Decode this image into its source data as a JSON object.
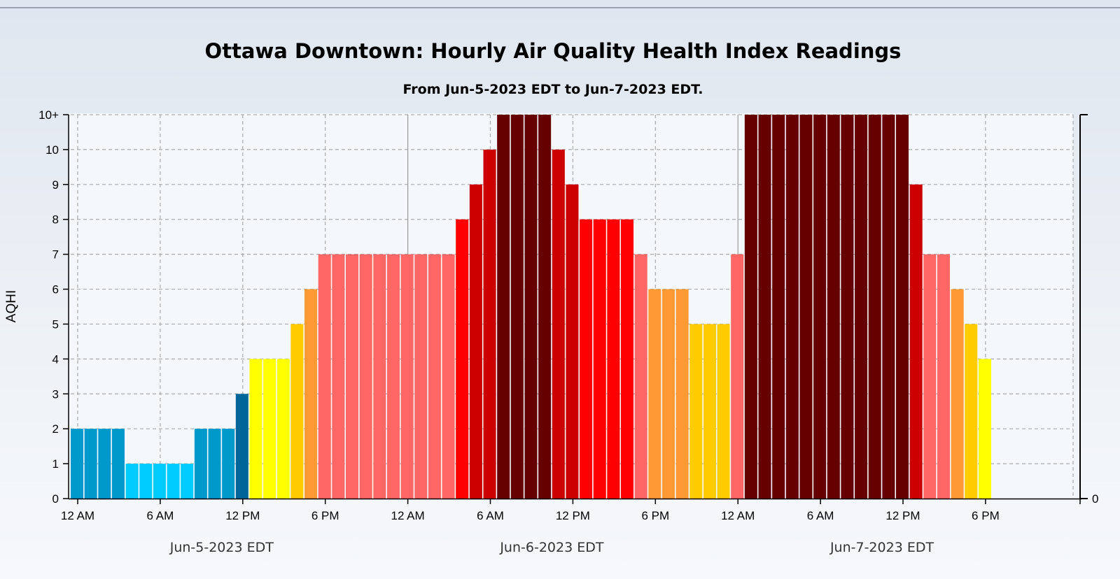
{
  "chart_data": {
    "type": "bar",
    "title": "Ottawa Downtown: Hourly Air Quality Health Index Readings",
    "subtitle": "From Jun-5-2023 EDT to Jun-7-2023 EDT.",
    "ylabel": "AQHI",
    "y_ticks": [
      "0",
      "1",
      "2",
      "3",
      "4",
      "5",
      "6",
      "7",
      "8",
      "9",
      "10",
      "10+"
    ],
    "right_axis_ticks": [
      "0"
    ],
    "ylim": [
      0,
      11
    ],
    "x_ticks": [
      "12 AM",
      "6 AM",
      "12 PM",
      "6 PM",
      "12 AM",
      "6 AM",
      "12 PM",
      "6 PM",
      "12 AM",
      "6 AM",
      "12 PM",
      "6 PM"
    ],
    "date_labels": [
      "Jun-5-2023 EDT",
      "Jun-6-2023 EDT",
      "Jun-7-2023 EDT"
    ],
    "x_unit": "hours since 12 AM Jun-5-2023 EDT",
    "grid": true,
    "values": [
      2,
      2,
      2,
      2,
      1,
      1,
      1,
      1,
      1,
      2,
      2,
      2,
      3,
      4,
      4,
      4,
      5,
      6,
      7,
      7,
      7,
      7,
      7,
      7,
      7,
      7,
      7,
      7,
      8,
      9,
      10,
      11,
      11,
      11,
      11,
      10,
      9,
      8,
      8,
      8,
      8,
      7,
      6,
      6,
      6,
      5,
      5,
      5,
      7,
      11,
      11,
      11,
      11,
      11,
      11,
      11,
      11,
      11,
      11,
      11,
      11,
      9,
      7,
      7,
      6,
      5,
      4
    ],
    "colors": {
      "1": "#00ccff",
      "2": "#0099cc",
      "3": "#006699",
      "4": "#ffff00",
      "5": "#ffcc00",
      "6": "#ff9933",
      "7": "#ff6666",
      "8": "#ff0000",
      "9": "#cc0000",
      "10": "#cc0000",
      "11": "#660000"
    }
  }
}
